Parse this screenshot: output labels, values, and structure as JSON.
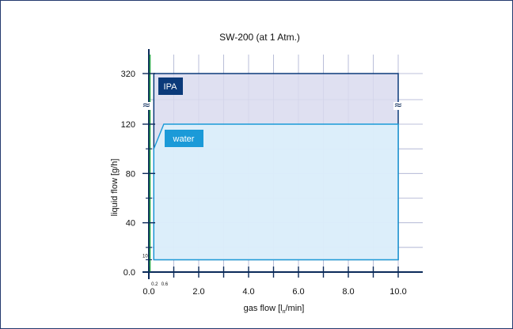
{
  "chart_data": {
    "type": "area",
    "title": "SW-200 (at 1 Atm.)",
    "xlabel": "gas flow [l",
    "xlabel_sub": "n",
    "xlabel_tail": "/min]",
    "ylabel": "liquid flow [g/h]",
    "xlim": [
      0,
      10
    ],
    "x_ticks": [
      0,
      2,
      4,
      6,
      8,
      10
    ],
    "x_tick_labels": [
      "0.0",
      "2.0",
      "4.0",
      "6.0",
      "8.0",
      "10.0"
    ],
    "x_minor_labels": [
      {
        "x": 0.2,
        "label": "0.2"
      },
      {
        "x": 0.6,
        "label": "0.6"
      }
    ],
    "y_tick_labels": [
      {
        "value": 0,
        "label": "0.0"
      },
      {
        "value": 40,
        "label": "40"
      },
      {
        "value": 80,
        "label": "80"
      },
      {
        "value": 120,
        "label": "120"
      },
      {
        "value": 320,
        "label": "320"
      }
    ],
    "y_minor_labels": [
      {
        "value": 10,
        "label": "10"
      }
    ],
    "axis_break": "≈",
    "grid": true,
    "series": [
      {
        "name": "IPA",
        "color": "#0b3a7a",
        "fill": "#d9dbef",
        "x": [
          0.2,
          10,
          10,
          0.2
        ],
        "y": [
          10,
          10,
          320,
          320
        ]
      },
      {
        "name": "water",
        "color": "#1b9ad8",
        "fill": "#dcf0fb",
        "x": [
          0.2,
          0.6,
          10,
          10,
          0.2
        ],
        "y": [
          100,
          120,
          120,
          10,
          10
        ]
      }
    ]
  }
}
